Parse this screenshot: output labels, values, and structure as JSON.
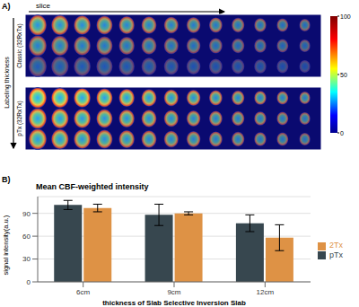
{
  "panel_a": {
    "label": "A)",
    "x_arrow_label": "slice",
    "y_arrow_label": "Labeling thickness",
    "groups": [
      "Classic (32RxTx)",
      "pTx (32RxTx)"
    ],
    "colorbar": {
      "range": [
        0,
        100
      ],
      "ticks": [
        0,
        50,
        100
      ]
    }
  },
  "chart_data": {
    "type": "bar",
    "panel_label": "B)",
    "title": "Mean CBF-weighted intensity",
    "x_label": "thickness of Slab Selective Inversion Slab",
    "y_label": "signal intensity(a.u.)",
    "categories": [
      "6cm",
      "9cm",
      "12cm"
    ],
    "series": [
      {
        "name": "pTx",
        "color": "#37474f",
        "values": [
          101,
          88,
          77
        ],
        "errors": [
          6,
          14,
          11
        ]
      },
      {
        "name": "2Tx",
        "color": "#de9245",
        "values": [
          97,
          90,
          58
        ],
        "errors": [
          5,
          2,
          17
        ]
      }
    ],
    "ylim": [
      0,
      112
    ],
    "yticks": [
      0,
      30,
      60,
      90
    ],
    "grid": true,
    "legend": "right"
  }
}
